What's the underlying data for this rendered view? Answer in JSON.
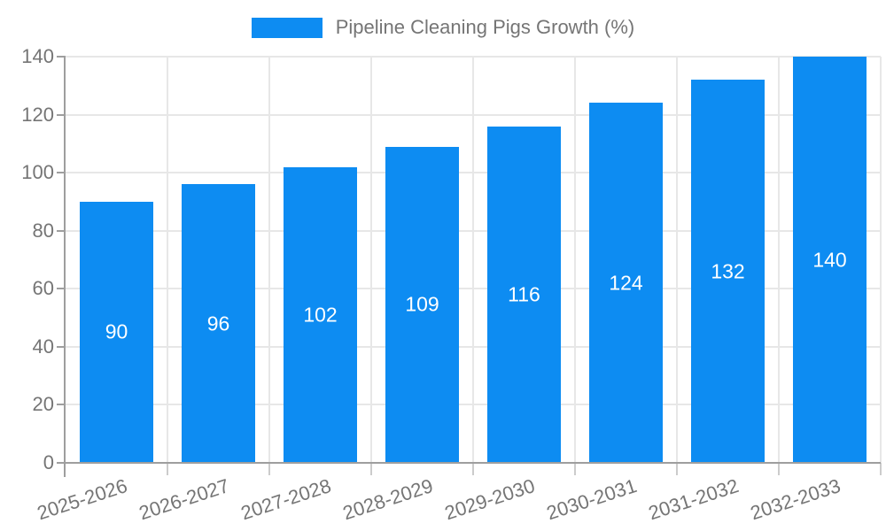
{
  "chart_data": {
    "type": "bar",
    "title": "Pipeline Cleaning Pigs Growth (%)",
    "categories": [
      "2025-2026",
      "2026-2027",
      "2027-2028",
      "2028-2029",
      "2029-2030",
      "2030-2031",
      "2031-2032",
      "2032-2033"
    ],
    "values": [
      90,
      96,
      102,
      109,
      116,
      124,
      132,
      140
    ],
    "xlabel": "",
    "ylabel": "",
    "ylim": [
      0,
      140
    ],
    "yticks": [
      0,
      20,
      40,
      60,
      80,
      100,
      120,
      140
    ],
    "ytick_step": 20,
    "grid": true,
    "legend_position": "top",
    "bar_labels_inside": true,
    "colors": {
      "bar": "#0d8cf2",
      "bar_label": "#ffffff",
      "axis_text": "#757575",
      "grid": "#e7e7e7",
      "axis_line": "#9e9e9e",
      "tick": "#cccccc",
      "background": "#ffffff"
    }
  }
}
